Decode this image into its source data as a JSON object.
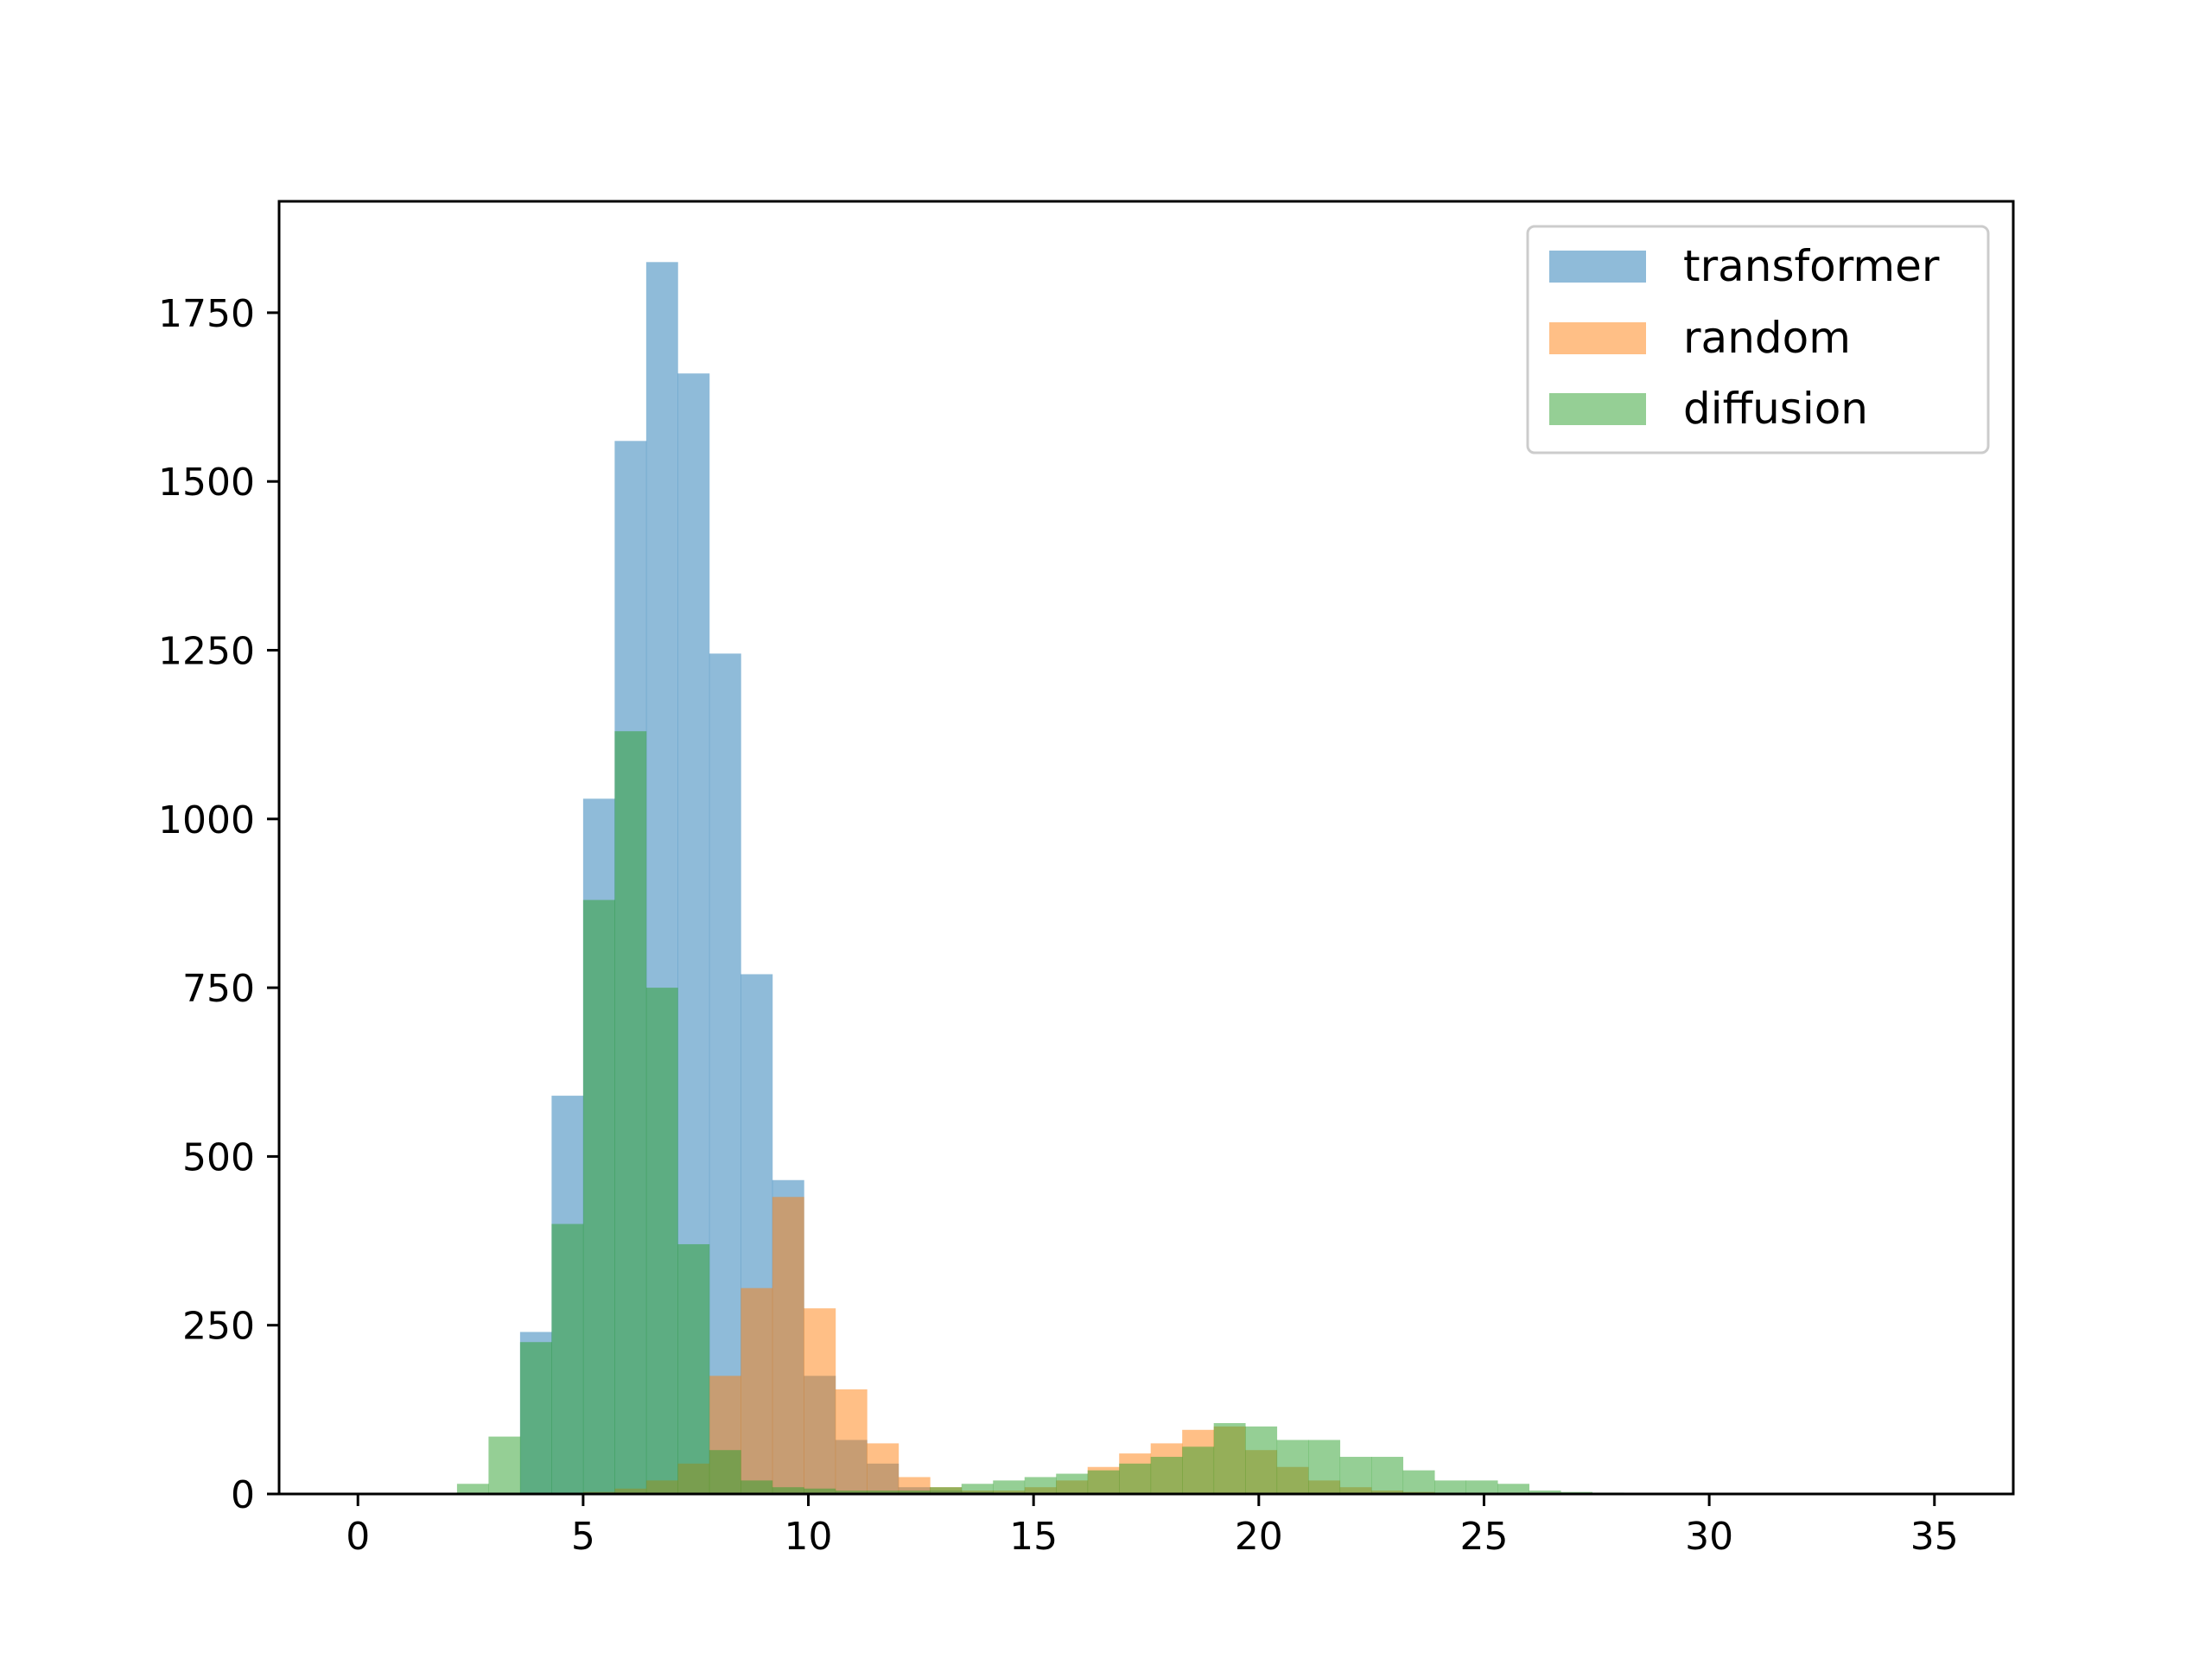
{
  "chart_data": {
    "type": "bar",
    "subtype": "histogram",
    "title": "",
    "xlabel": "",
    "ylabel": "",
    "xlim": [
      -1.75,
      36.75
    ],
    "ylim": [
      0,
      1915
    ],
    "xticks": [
      0,
      5,
      10,
      15,
      20,
      25,
      30,
      35
    ],
    "yticks": [
      0,
      250,
      500,
      750,
      1000,
      1250,
      1500,
      1750
    ],
    "grid": false,
    "legend": "top-right",
    "bin_width": 0.7,
    "series": [
      {
        "name": "transformer",
        "color": "#1f77b4",
        "opacity": 0.5,
        "bin_start": 2.2,
        "values": [
          0,
          0,
          240,
          590,
          1030,
          1560,
          1825,
          1660,
          1245,
          770,
          465,
          175,
          80,
          45,
          10,
          5,
          3,
          2
        ]
      },
      {
        "name": "random",
        "color": "#ff7f0e",
        "opacity": 0.5,
        "bin_start": 2.2,
        "values": [
          0,
          0,
          0,
          0,
          3,
          8,
          20,
          45,
          175,
          305,
          440,
          275,
          155,
          75,
          25,
          10,
          5,
          5,
          10,
          20,
          40,
          60,
          75,
          95,
          100,
          65,
          40,
          20,
          10,
          5,
          3,
          1
        ]
      },
      {
        "name": "diffusion",
        "color": "#2ca02c",
        "opacity": 0.5,
        "bin_start": 2.2,
        "values": [
          15,
          85,
          225,
          400,
          880,
          1130,
          750,
          370,
          65,
          20,
          10,
          8,
          5,
          5,
          5,
          10,
          15,
          20,
          25,
          30,
          35,
          45,
          55,
          70,
          105,
          100,
          80,
          80,
          55,
          55,
          35,
          20,
          20,
          15,
          5,
          3,
          2,
          1
        ]
      }
    ]
  }
}
